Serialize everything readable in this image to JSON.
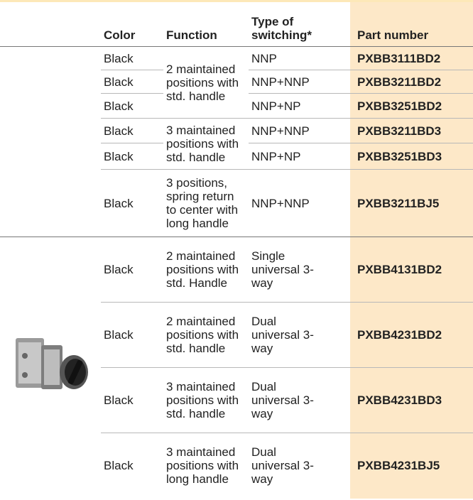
{
  "header": {
    "color": "Color",
    "function": "Function",
    "switching": "Type of switching*",
    "part": "Part number"
  },
  "sections": [
    {
      "groups": [
        {
          "function": "2 maintained positions with std. handle",
          "rows": [
            {
              "color": "Black",
              "switching": "NNP",
              "part": "PXBB3111BD2"
            },
            {
              "color": "Black",
              "switching": "NNP+NNP",
              "part": "PXBB3211BD2"
            },
            {
              "color": "Black",
              "switching": "NNP+NP",
              "part": "PXBB3251BD2"
            }
          ]
        },
        {
          "function": "3 maintained positions with std. handle",
          "rows": [
            {
              "color": "Black",
              "switching": "NNP+NNP",
              "part": "PXBB3211BD3"
            },
            {
              "color": "Black",
              "switching": "NNP+NP",
              "part": "PXBB3251BD3"
            }
          ]
        },
        {
          "function": "3 positions, spring return to center with long handle",
          "rows": [
            {
              "color": "Black",
              "switching": "NNP+NNP",
              "part": "PXBB3211BJ5"
            }
          ]
        }
      ]
    },
    {
      "groups": [
        {
          "function": "2 maintained positions with std. Handle",
          "rows": [
            {
              "color": "Black",
              "switching": "Single universal 3-way",
              "part": "PXBB4131BD2"
            }
          ]
        },
        {
          "function": "2 maintained positions with std. handle",
          "rows": [
            {
              "color": "Black",
              "switching": "Dual universal 3-way",
              "part": "PXBB4231BD2"
            }
          ]
        },
        {
          "function": "3 maintained positions with std. handle",
          "rows": [
            {
              "color": "Black",
              "switching": "Dual universal 3-way",
              "part": "PXBB4231BD3"
            }
          ]
        },
        {
          "function": "3 maintained positions with long handle",
          "rows": [
            {
              "color": "Black",
              "switching": "Dual universal 3-way",
              "part": "PXBB4231BJ5"
            }
          ]
        }
      ]
    }
  ]
}
